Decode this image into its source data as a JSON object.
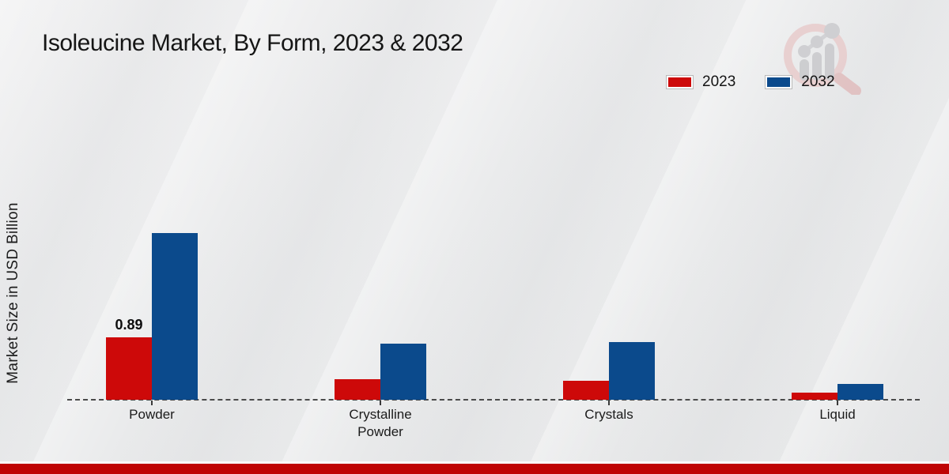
{
  "chart_data": {
    "type": "bar",
    "title": "Isoleucine Market, By Form, 2023 & 2032",
    "categories": [
      "Powder",
      "Crystalline Powder",
      "Crystals",
      "Liquid"
    ],
    "series": [
      {
        "name": "2023",
        "color": "#cd0909",
        "values": [
          0.89,
          0.29,
          0.27,
          0.1
        ]
      },
      {
        "name": "2032",
        "color": "#0b4a8c",
        "values": [
          2.36,
          0.8,
          0.82,
          0.22
        ]
      }
    ],
    "xlabel": "",
    "ylabel": "Market Size in USD Billion",
    "ylim": [
      0,
      2.6
    ],
    "grid": false,
    "axis_style": "dashed-baseline-only",
    "legend_position": "top-right",
    "annotations": [
      {
        "category": "Powder",
        "series": "2023",
        "text": "0.89"
      }
    ]
  },
  "footer": {
    "band_color": "#bf0404"
  },
  "watermark": {
    "icon": "magnifier-bar-chart-logo"
  }
}
